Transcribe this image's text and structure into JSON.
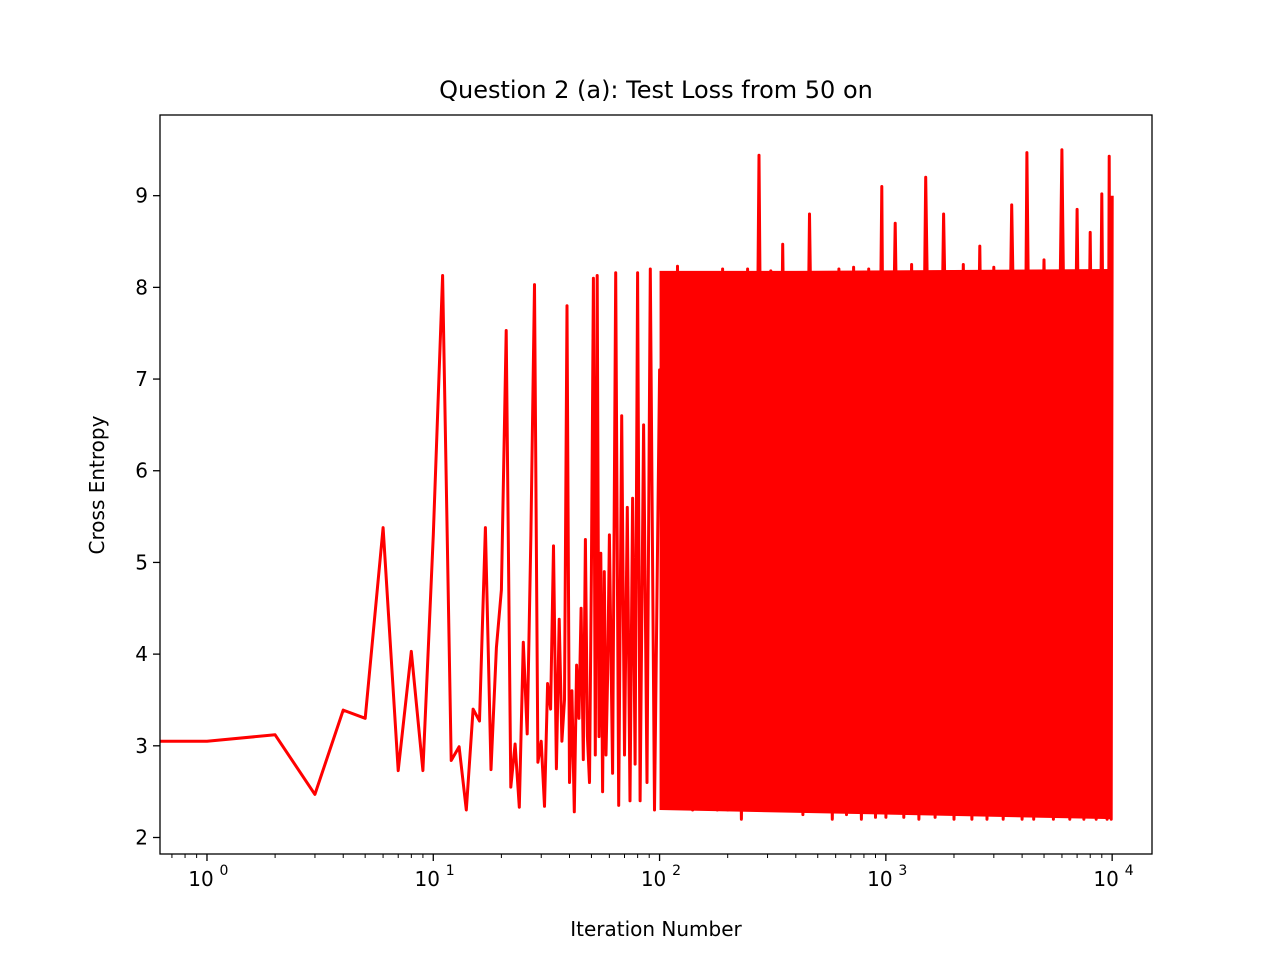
{
  "chart_data": {
    "type": "line",
    "title": "Question 2 (a): Test Loss from 50 on",
    "xlabel": "Iteration Number",
    "ylabel": "Cross Entropy",
    "x_scale": "log",
    "xlim": [
      0.62,
      15000
    ],
    "ylim": [
      1.82,
      9.88
    ],
    "x_ticks": [
      1,
      10,
      100,
      1000,
      10000
    ],
    "x_tick_labels": [
      {
        "base": "10",
        "exp": "0"
      },
      {
        "base": "10",
        "exp": "1"
      },
      {
        "base": "10",
        "exp": "2"
      },
      {
        "base": "10",
        "exp": "3"
      },
      {
        "base": "10",
        "exp": "4"
      }
    ],
    "y_ticks": [
      2,
      3,
      4,
      5,
      6,
      7,
      8,
      9
    ],
    "y_tick_labels": [
      "2",
      "3",
      "4",
      "5",
      "6",
      "7",
      "8",
      "9"
    ],
    "grid": false,
    "series": [
      {
        "color": "#ff0000",
        "x": [
          0,
          1,
          2,
          3,
          4,
          5,
          6,
          7,
          8,
          9,
          10,
          11,
          12,
          13,
          14,
          15,
          16,
          17,
          18,
          19,
          20,
          21,
          22,
          23,
          24,
          25,
          26,
          27,
          28,
          29,
          30,
          31,
          32,
          33,
          34,
          35,
          36,
          37,
          38,
          39,
          40,
          41,
          42,
          43,
          44,
          45,
          46,
          47,
          48,
          49,
          50,
          51,
          52,
          53,
          54,
          55,
          56,
          57,
          58,
          59,
          60,
          62,
          64,
          66,
          68,
          70,
          72,
          74,
          76,
          78,
          80,
          82,
          85,
          88,
          91,
          95,
          100,
          105,
          110,
          115,
          120,
          125,
          130,
          140,
          150,
          160,
          170,
          180,
          190,
          200,
          215,
          230,
          245,
          260,
          275,
          290,
          310,
          330,
          350,
          375,
          400,
          430,
          460,
          500,
          540,
          580,
          620,
          670,
          720,
          780,
          840,
          900,
          960,
          1000,
          1100,
          1200,
          1300,
          1400,
          1500,
          1650,
          1800,
          2000,
          2200,
          2400,
          2600,
          2800,
          3000,
          3300,
          3600,
          4000,
          4200,
          4500,
          5000,
          5500,
          6000,
          6500,
          7000,
          7500,
          8000,
          8500,
          9000,
          9500,
          9700,
          9900,
          10000
        ],
        "y": [
          3.05,
          3.05,
          3.12,
          2.47,
          3.39,
          3.3,
          5.38,
          2.73,
          4.03,
          2.73,
          5.3,
          8.13,
          2.84,
          2.99,
          2.3,
          3.4,
          3.27,
          5.38,
          2.74,
          4.07,
          4.7,
          7.53,
          2.55,
          3.02,
          2.33,
          4.13,
          3.13,
          5.3,
          8.03,
          2.82,
          3.05,
          2.34,
          3.68,
          3.4,
          5.18,
          2.75,
          4.38,
          3.05,
          3.5,
          7.8,
          2.6,
          3.6,
          2.28,
          3.88,
          3.3,
          4.5,
          2.85,
          5.25,
          3.1,
          2.6,
          4.9,
          8.1,
          2.9,
          8.13,
          3.1,
          5.1,
          2.5,
          4.9,
          2.9,
          3.8,
          5.3,
          2.7,
          8.16,
          2.35,
          6.6,
          2.9,
          5.6,
          2.4,
          5.7,
          2.8,
          8.16,
          2.4,
          6.5,
          2.6,
          8.2,
          2.3,
          7.1,
          2.5,
          8.1,
          2.4,
          8.23,
          2.4,
          7.9,
          2.3,
          8.16,
          2.4,
          8.1,
          2.3,
          8.2,
          2.3,
          8.1,
          2.2,
          8.2,
          2.3,
          9.44,
          2.3,
          8.18,
          2.3,
          8.47,
          2.3,
          8.15,
          2.25,
          8.8,
          2.3,
          8.15,
          2.2,
          8.2,
          2.25,
          8.22,
          2.2,
          8.2,
          2.22,
          9.1,
          2.22,
          8.7,
          2.22,
          8.25,
          2.2,
          9.2,
          2.22,
          8.8,
          2.2,
          8.25,
          2.2,
          8.45,
          2.2,
          8.22,
          2.2,
          8.9,
          2.2,
          9.47,
          2.2,
          8.3,
          2.2,
          9.5,
          2.2,
          8.85,
          2.2,
          8.6,
          2.2,
          9.02,
          2.2,
          9.43,
          2.2,
          9.0
        ]
      }
    ]
  }
}
